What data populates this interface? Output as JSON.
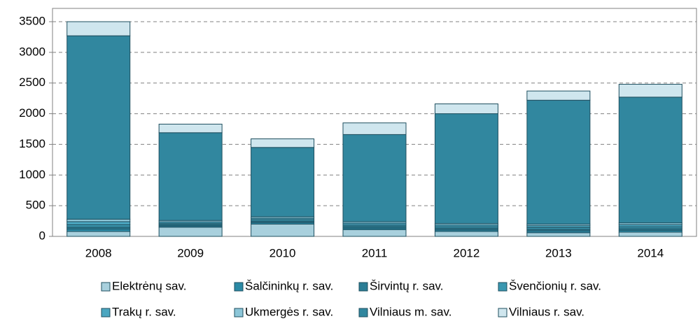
{
  "chart_data": {
    "type": "stacked_bar",
    "categories": [
      "2008",
      "2009",
      "2010",
      "2011",
      "2012",
      "2013",
      "2014"
    ],
    "series": [
      {
        "name": "Elektrėnų sav.",
        "color": "#a8d0dd",
        "values": [
          80,
          150,
          200,
          110,
          80,
          60,
          70
        ]
      },
      {
        "name": "Šalčininkų r. sav.",
        "color": "#2b8aa5",
        "values": [
          40,
          20,
          25,
          25,
          25,
          30,
          30
        ]
      },
      {
        "name": "Širvintų r. sav.",
        "color": "#2a7d95",
        "values": [
          30,
          20,
          20,
          25,
          25,
          25,
          25
        ]
      },
      {
        "name": "Švenčionių r. sav.",
        "color": "#3a97b0",
        "values": [
          40,
          20,
          25,
          25,
          25,
          30,
          30
        ]
      },
      {
        "name": "Trakų r. sav.",
        "color": "#4ba6c0",
        "values": [
          50,
          25,
          25,
          30,
          30,
          30,
          35
        ]
      },
      {
        "name": "Ukmergės r. sav.",
        "color": "#8cc6d8",
        "values": [
          40,
          25,
          25,
          25,
          25,
          25,
          30
        ]
      },
      {
        "name": "Vilniaus m. sav.",
        "color": "#31879f",
        "values": [
          2990,
          1430,
          1130,
          1420,
          1790,
          2020,
          2050
        ]
      },
      {
        "name": "Vilniaus r. sav.",
        "color": "#cfe6ee",
        "values": [
          230,
          140,
          140,
          190,
          160,
          150,
          210
        ]
      }
    ],
    "ylim": [
      0,
      3500
    ],
    "yticks": [
      0,
      500,
      1000,
      1500,
      2000,
      2500,
      3000,
      3500
    ],
    "grid": true
  }
}
